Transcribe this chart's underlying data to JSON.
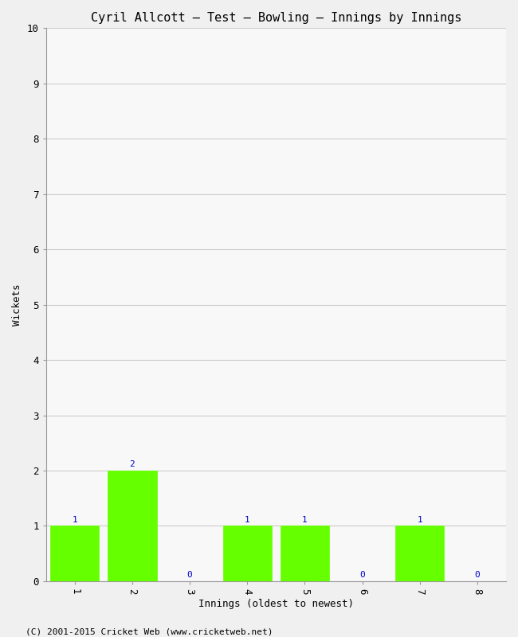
{
  "title": "Cyril Allcott – Test – Bowling – Innings by Innings",
  "xlabel": "Innings (oldest to newest)",
  "ylabel": "Wickets",
  "categories": [
    "1",
    "2",
    "3",
    "4",
    "5",
    "6",
    "7",
    "8"
  ],
  "values": [
    1,
    2,
    0,
    1,
    1,
    0,
    1,
    0
  ],
  "bar_color": "#66ff00",
  "bar_edge_color": "#66ff00",
  "ylim": [
    0,
    10
  ],
  "yticks": [
    0,
    1,
    2,
    3,
    4,
    5,
    6,
    7,
    8,
    9,
    10
  ],
  "label_color": "#0000cc",
  "label_fontsize": 8,
  "title_fontsize": 11,
  "axis_label_fontsize": 9,
  "tick_fontsize": 9,
  "background_color": "#f0f0f0",
  "plot_bg_color": "#f8f8f8",
  "grid_color": "#cccccc",
  "footer": "(C) 2001-2015 Cricket Web (www.cricketweb.net)",
  "footer_fontsize": 8,
  "footer_color": "#000000"
}
